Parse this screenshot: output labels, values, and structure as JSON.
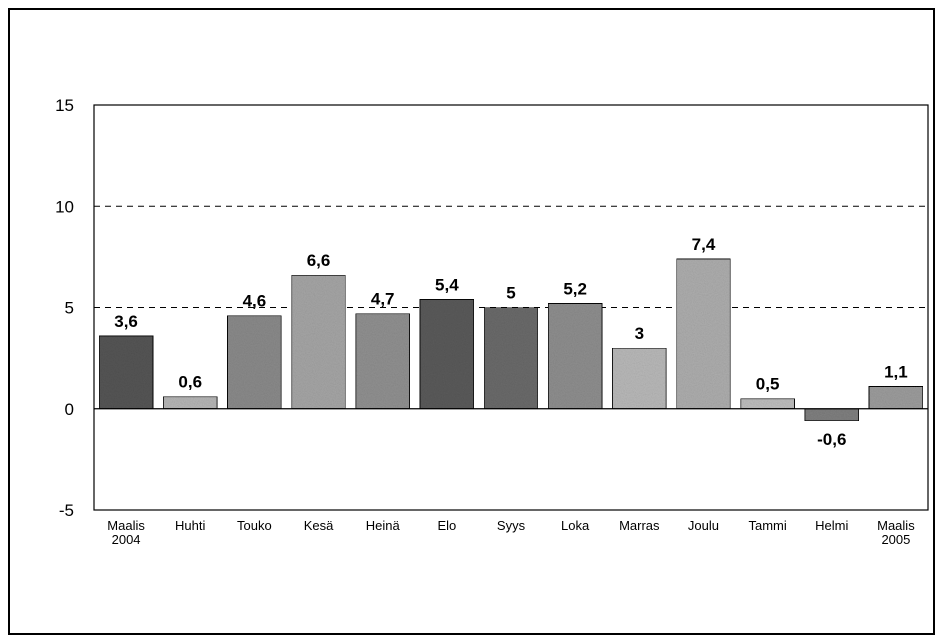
{
  "chart_data": {
    "type": "bar",
    "categories": [
      [
        "Maalis",
        "2004"
      ],
      [
        "Huhti"
      ],
      [
        "Touko"
      ],
      [
        "Kesä"
      ],
      [
        "Heinä"
      ],
      [
        "Elo"
      ],
      [
        "Syys"
      ],
      [
        "Loka"
      ],
      [
        "Marras"
      ],
      [
        "Joulu"
      ],
      [
        "Tammi"
      ],
      [
        "Helmi"
      ],
      [
        "Maalis",
        "2005"
      ]
    ],
    "values": [
      3.6,
      0.6,
      4.6,
      6.6,
      4.7,
      5.4,
      5,
      5.2,
      3,
      7.4,
      0.5,
      -0.6,
      1.1
    ],
    "data_labels": [
      "3,6",
      "0,6",
      "4,6",
      "6,6",
      "4,7",
      "5,4",
      "5",
      "5,2",
      "3",
      "7,4",
      "0,5",
      "-0,6",
      "1,1"
    ],
    "yticks": [
      15,
      10,
      5,
      0,
      -5
    ],
    "ylim": [
      -5,
      15
    ],
    "gridlines": [
      5,
      10
    ],
    "grid": "dashed",
    "title": "",
    "xlabel": "",
    "ylabel": "",
    "bar_colors": [
      "#555555",
      "#b5b5b5",
      "#8a8a8a",
      "#a5a5a5",
      "#909090",
      "#5a5a5a",
      "#6a6a6a",
      "#8e8e8e",
      "#b8b8b8",
      "#adadad",
      "#bdbdbd",
      "#7f7f7f",
      "#9c9c9c"
    ]
  }
}
